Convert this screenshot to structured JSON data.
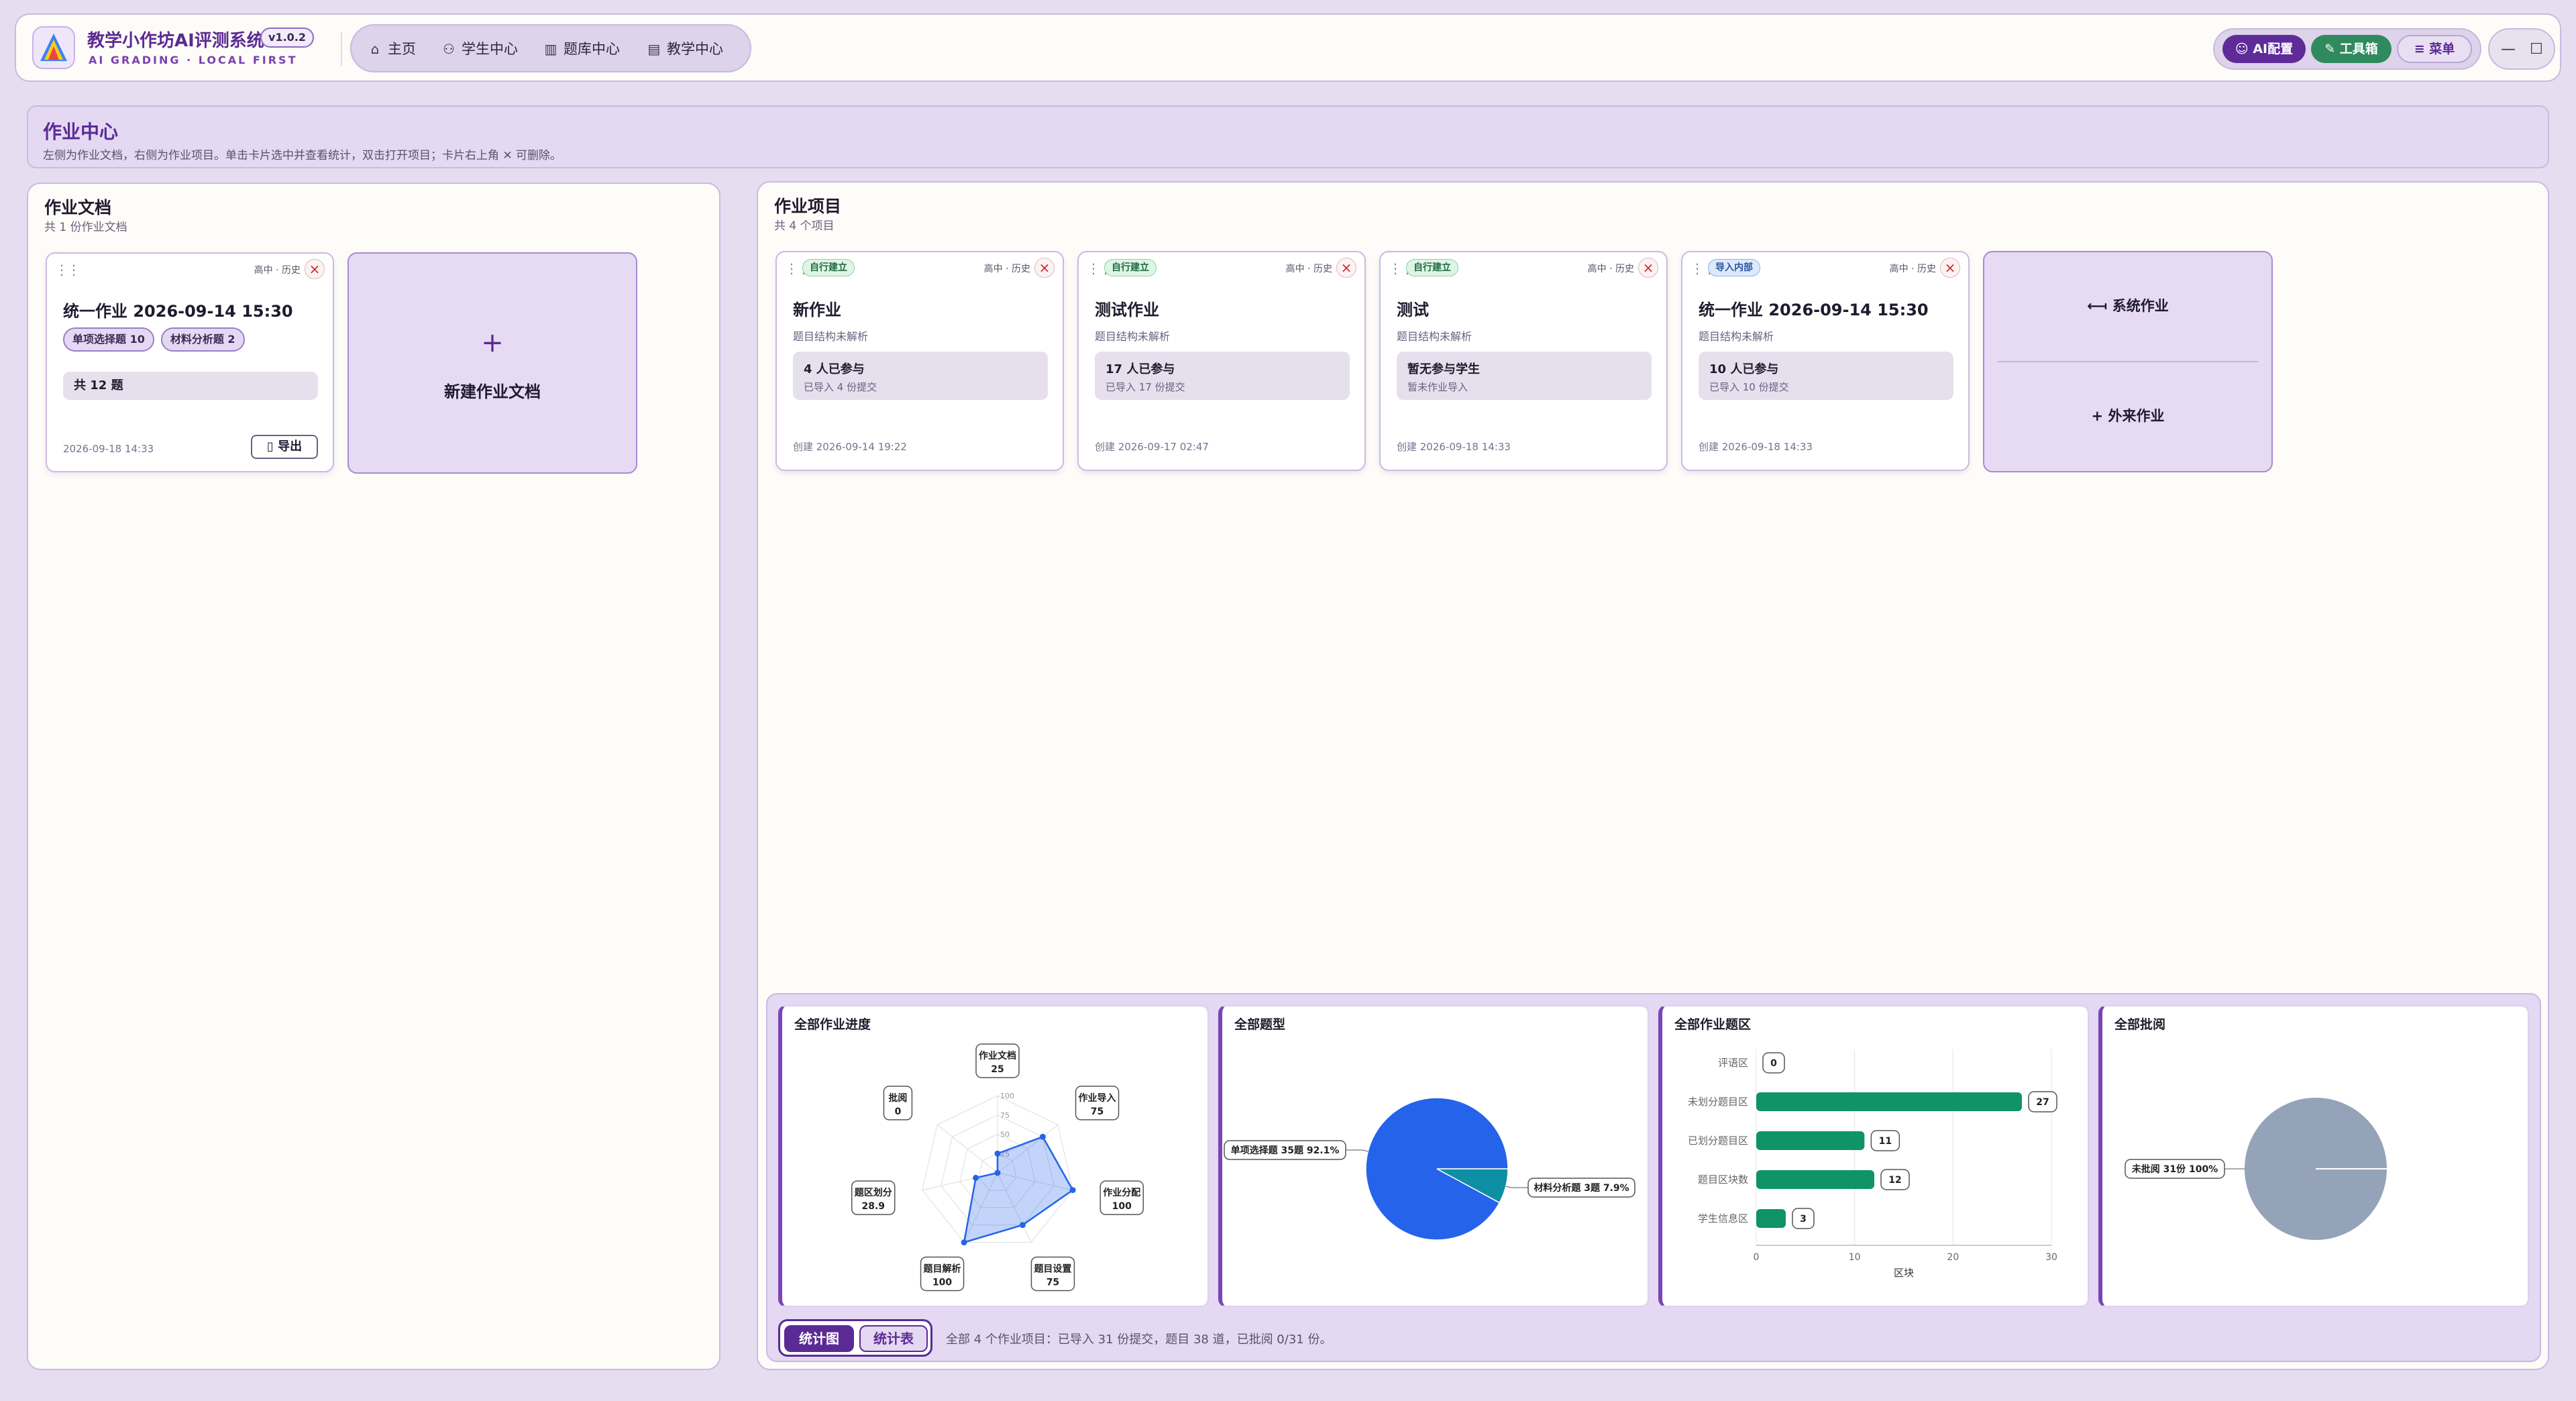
{
  "app": {
    "title": "教学小作坊AI评测系统",
    "version": "v1.0.2",
    "tagline": "AI GRADING · LOCAL FIRST"
  },
  "nav": {
    "items": [
      {
        "label": "主页",
        "icon": "home-icon"
      },
      {
        "label": "学生中心",
        "icon": "students-icon"
      },
      {
        "label": "题库中心",
        "icon": "books-icon"
      },
      {
        "label": "教学中心",
        "icon": "notebook-icon"
      }
    ]
  },
  "toolbar": {
    "ai": "AI配置",
    "tools": "工具箱",
    "menu": "菜单"
  },
  "window": {
    "minimize": "—",
    "maximize": "☐"
  },
  "banner": {
    "title": "作业中心",
    "desc": "左侧为作业文档，右侧为作业项目。单击卡片选中并查看统计，双击打开项目；卡片右上角 ✕ 可删除。"
  },
  "docs": {
    "title": "作业文档",
    "subtitle": "共 1 份作业文档",
    "cards": [
      {
        "meta": "高中 · 历史",
        "title": "统一作业 2026-09-14 15:30",
        "chips": [
          "单项选择题 10",
          "材料分析题 2"
        ],
        "total": "共 12 题",
        "date": "2026-09-18 14:33",
        "export": "导出"
      }
    ],
    "new_label": "新建作业文档"
  },
  "projects": {
    "title": "作业项目",
    "subtitle": "共 4 个项目",
    "cards": [
      {
        "tag": "自行建立",
        "meta": "高中 · 历史",
        "title": "新作业",
        "status": "题目结构未解析",
        "stat1": "4 人已参与",
        "stat2": "已导入 4 份提交",
        "date": "创建 2026-09-14 19:22"
      },
      {
        "tag": "自行建立",
        "meta": "高中 · 历史",
        "title": "测试作业",
        "status": "题目结构未解析",
        "stat1": "17 人已参与",
        "stat2": "已导入 17 份提交",
        "date": "创建 2026-09-17 02:47"
      },
      {
        "tag": "自行建立",
        "meta": "高中 · 历史",
        "title": "测试",
        "status": "题目结构未解析",
        "stat1": "暂无参与学生",
        "stat2": "暂未作业导入",
        "date": "创建 2026-09-18 14:33"
      },
      {
        "tag": "导入内部",
        "meta": "高中 · 历史",
        "title": "统一作业 2026-09-14 15:30",
        "status": "题目结构未解析",
        "stat1": "10 人已参与",
        "stat2": "已导入 10 份提交",
        "date": "创建 2026-09-18 14:33"
      }
    ],
    "actions": {
      "system": "系统作业",
      "external": "外来作业"
    }
  },
  "stats": {
    "toggle": {
      "chart": "统计图",
      "table": "统计表"
    },
    "summary": "全部 4 个作业项目：已导入 31 份提交，题目 38 道，已批阅 0/31 份。"
  },
  "colors": {
    "accent": "#5b2a94",
    "blue": "#2563eb",
    "teal": "#0e8fa3",
    "green": "#0f9467",
    "slate": "#94a3b8"
  },
  "chart_data": [
    {
      "type": "radar",
      "title": "全部作业进度",
      "axes": [
        "作业文档",
        "作业导入",
        "作业分配",
        "题目设置",
        "题目解析",
        "题区划分",
        "批阅"
      ],
      "values": [
        25,
        75,
        100,
        75,
        100,
        28.9,
        0
      ],
      "value_labels": [
        "25",
        "75",
        "100",
        "75",
        "100",
        "28.9",
        "0"
      ],
      "ticks": [
        "100",
        "75",
        "50",
        "25"
      ],
      "range": [
        0,
        100
      ]
    },
    {
      "type": "pie",
      "title": "全部题型",
      "slices": [
        {
          "label": "单项选择题 35题 92.1%",
          "value": 35,
          "color": "#2563eb"
        },
        {
          "label": "材料分析题 3题 7.9%",
          "value": 3,
          "color": "#0e8fa3"
        }
      ]
    },
    {
      "type": "bar",
      "orientation": "horizontal",
      "title": "全部作业题区",
      "categories": [
        "评语区",
        "未划分题目区",
        "已划分题目区",
        "题目区块数",
        "学生信息区"
      ],
      "values": [
        0,
        27,
        11,
        12,
        3
      ],
      "value_labels": [
        "0",
        "27",
        "11",
        "12",
        "3"
      ],
      "xticks": [
        "0",
        "10",
        "20",
        "30"
      ],
      "xlabel": "区块",
      "xlim": [
        0,
        30
      ]
    },
    {
      "type": "pie",
      "title": "全部批阅",
      "slices": [
        {
          "label": "未批阅 31份 100%",
          "value": 31,
          "color": "#94a3b8"
        }
      ]
    }
  ]
}
